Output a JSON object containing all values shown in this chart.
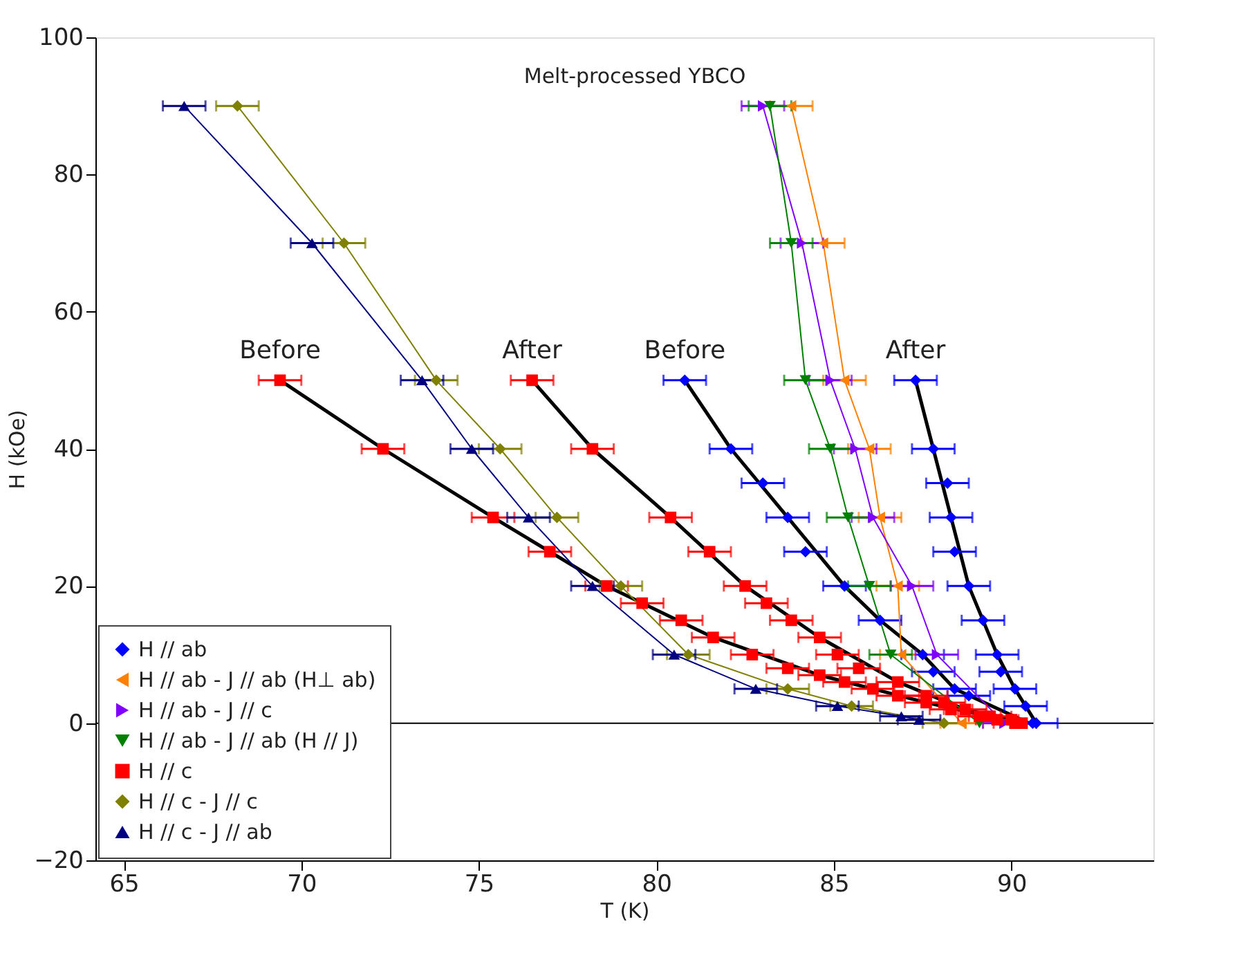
{
  "chart_data": {
    "type": "scatter",
    "xlabel": "T (K)",
    "ylabel": "H (kOe)",
    "xlim": [
      64.2,
      94
    ],
    "xticks": [
      65,
      70,
      75,
      80,
      85,
      90
    ],
    "ylim": [
      -20,
      100
    ],
    "yticks": [
      -20,
      0,
      20,
      40,
      60,
      80,
      100
    ],
    "grid": false,
    "legend": "bottom left",
    "ref_lines": [
      {
        "axis": "y",
        "value": 0,
        "color": "#000000"
      }
    ],
    "annotations": [
      "Melt-processed YBCO",
      {
        "text": "Before",
        "x": 69.4,
        "y": 50
      },
      {
        "text": "After",
        "x": 76.5,
        "y": 50
      },
      {
        "text": "Before",
        "x": 80.8,
        "y": 50
      },
      {
        "text": "After",
        "x": 87.3,
        "y": 50
      }
    ],
    "series": [
      {
        "type": "line",
        "color": "#000000",
        "marker": "none",
        "x": [
          69.4,
          72.3,
          75.4,
          78.6,
          81.6,
          84.6,
          87.6,
          90.2
        ],
        "values": [
          50,
          40,
          30,
          20,
          12.5,
          7,
          3,
          0
        ]
      },
      {
        "type": "line",
        "color": "#000000",
        "marker": "none",
        "x": [
          76.5,
          78.2,
          80.4,
          82.5,
          84.6,
          86.8,
          88.7,
          90.4
        ],
        "values": [
          50,
          40,
          30,
          20,
          12.5,
          6,
          2,
          0
        ]
      },
      {
        "type": "line",
        "color": "#000000",
        "marker": "none",
        "x": [
          80.8,
          82.1,
          83.7,
          85.3,
          86.3,
          87.5,
          88.4,
          90.5
        ],
        "values": [
          50,
          40,
          30,
          20,
          15,
          10,
          5,
          0
        ]
      },
      {
        "type": "line",
        "color": "#000000",
        "marker": "none",
        "x": [
          87.3,
          87.8,
          88.3,
          88.8,
          89.2,
          89.6,
          90.1,
          90.7
        ],
        "values": [
          50,
          40,
          30,
          20,
          15,
          10,
          5,
          0
        ]
      },
      {
        "name": "H // ab",
        "type": "scatter",
        "color": "#0000ff",
        "marker": "diamond",
        "x": [
          80.8,
          82.1,
          83.0,
          83.7,
          84.2,
          85.3,
          86.3,
          87.5,
          87.8,
          88.4,
          88.8,
          90.6,
          87.3,
          87.8,
          88.2,
          88.3,
          88.4,
          88.8,
          89.2,
          89.6,
          89.7,
          90.1,
          90.4,
          90.7
        ],
        "values": [
          50,
          40,
          35,
          30,
          25,
          20,
          15,
          10,
          7.5,
          5,
          4,
          0,
          50,
          40,
          35,
          30,
          25,
          20,
          15,
          10,
          7.5,
          5,
          2.5,
          0
        ],
        "xerrors": [
          0.6,
          0.6,
          0.6,
          0.6,
          0.6,
          0.6,
          0.6,
          0.6,
          0.6,
          0.6,
          0.6,
          null,
          0.6,
          0.6,
          0.6,
          0.6,
          0.6,
          0.6,
          0.6,
          0.6,
          0.6,
          0.6,
          0.6,
          0.6
        ]
      },
      {
        "name": "H // ab - J // ab (H⊥ ab)",
        "type": "line",
        "color": "#ff8000",
        "marker": "triangle-left",
        "x": [
          83.8,
          84.7,
          85.3,
          86.0,
          86.3,
          86.8,
          86.9,
          88.6
        ],
        "values": [
          90,
          70,
          50,
          40,
          30,
          20,
          10,
          0
        ],
        "xerrors": [
          0.6,
          0.6,
          0.6,
          0.6,
          0.6,
          0.6,
          0.6,
          0.6
        ]
      },
      {
        "name": "H // ab - J // c",
        "type": "line",
        "color": "#8000ff",
        "marker": "triangle-right",
        "x": [
          83.0,
          84.1,
          84.9,
          85.6,
          86.1,
          87.2,
          87.9,
          89.8
        ],
        "values": [
          90,
          70,
          50,
          40,
          30,
          20,
          10,
          0
        ],
        "xerrors": [
          0.6,
          0.6,
          0.6,
          0.6,
          0.6,
          0.6,
          0.6,
          0.6
        ]
      },
      {
        "name": "H // ab - J // ab (H // J)",
        "type": "line",
        "color": "#008000",
        "marker": "triangle-down",
        "x": [
          83.2,
          83.8,
          84.2,
          84.9,
          85.4,
          86.0,
          86.6,
          89.1
        ],
        "values": [
          90,
          70,
          50,
          40,
          30,
          20,
          10,
          0
        ],
        "xerrors": [
          0.6,
          0.6,
          0.6,
          0.6,
          0.6,
          0.6,
          0.6,
          null
        ]
      },
      {
        "name": "H // c",
        "type": "scatter",
        "color": "#ff0000",
        "marker": "square",
        "x": [
          69.4,
          72.3,
          75.4,
          77.0,
          78.6,
          79.6,
          80.7,
          81.6,
          82.7,
          83.7,
          84.6,
          85.3,
          86.1,
          86.8,
          87.6,
          88.3,
          89.1,
          89.6,
          90.1,
          76.5,
          78.2,
          80.4,
          81.5,
          82.5,
          83.1,
          83.8,
          84.6,
          85.1,
          85.7,
          86.8,
          87.6,
          88.1,
          88.7,
          89.4,
          90.0,
          90.3
        ],
        "values": [
          50,
          40,
          30,
          25,
          20,
          17.5,
          15,
          12.5,
          10,
          8,
          7,
          6,
          5,
          4,
          3,
          2,
          1,
          0.5,
          0,
          50,
          40,
          30,
          25,
          20,
          17.5,
          15,
          12.5,
          10,
          8,
          6,
          4,
          3,
          2,
          1,
          0.5,
          0
        ],
        "xerrors": [
          0.6,
          0.6,
          0.6,
          0.6,
          0.6,
          0.6,
          0.6,
          0.6,
          0.6,
          0.6,
          0.6,
          0.6,
          0.6,
          0.6,
          0.6,
          0.6,
          0.6,
          0.6,
          0.6,
          0.6,
          0.6,
          0.6,
          0.6,
          0.6,
          0.6,
          0.6,
          0.6,
          0.6,
          0.6,
          0.6,
          0.6,
          0.6,
          0.6,
          0.6,
          null,
          null
        ]
      },
      {
        "name": "H // c - J // c",
        "type": "line",
        "color": "#808000",
        "marker": "diamond",
        "x": [
          68.2,
          71.2,
          73.8,
          75.6,
          77.2,
          79.0,
          80.9,
          83.7,
          85.5,
          88.1
        ],
        "values": [
          90,
          70,
          50,
          40,
          30,
          20,
          10,
          5,
          2.5,
          0
        ],
        "xerrors": [
          0.6,
          0.6,
          0.6,
          0.6,
          0.6,
          0.6,
          0.6,
          0.6,
          0.6,
          0.6
        ]
      },
      {
        "name": "H // c - J // ab",
        "type": "line",
        "color": "#000080",
        "marker": "triangle-up",
        "x": [
          66.7,
          70.3,
          73.4,
          74.8,
          76.4,
          78.2,
          80.5,
          82.8,
          85.1,
          86.9,
          87.4
        ],
        "values": [
          90,
          70,
          50,
          40,
          30,
          20,
          10,
          5,
          2.5,
          1,
          0.5
        ],
        "xerrors": [
          0.6,
          0.6,
          0.6,
          0.6,
          0.6,
          0.6,
          0.6,
          0.6,
          0.6,
          0.6,
          0.6
        ]
      }
    ]
  }
}
